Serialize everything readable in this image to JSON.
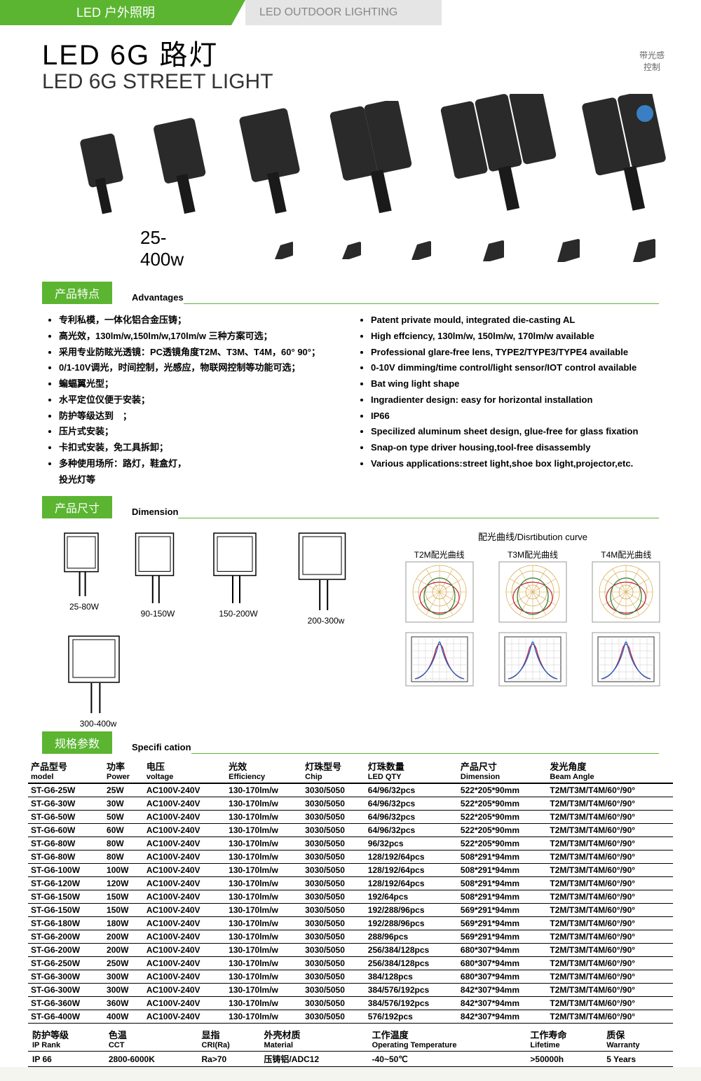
{
  "header": {
    "cn": "LED 户外照明",
    "en": "LED OUTDOOR LIGHTING"
  },
  "title": {
    "cn": "LED 6G 路灯",
    "en": "LED 6G STREET LIGHT"
  },
  "badge": "带光感\n控制",
  "wattage": "25-400w",
  "sections": {
    "advantages": {
      "tab": "产品特点",
      "sub": "Advantages"
    },
    "dimension": {
      "tab": "产品尺寸",
      "sub": "Dimension"
    },
    "specification": {
      "tab": "规格参数",
      "sub": "Specifi cation"
    }
  },
  "advantages_cn": [
    "专利私模，一体化铝合金压铸；",
    "高光效，130lm/w,150lm/w,170lm/w 三种方案可选；",
    "采用专业防眩光透镜：PC透镜角度T2M、T3M、T4M，60° 90°；",
    "0/1-10V调光，时间控制，光感应，物联网控制等功能可选；",
    "蝙蝠翼光型；",
    "水平定位仪便于安装；",
    "防护等级达到　；",
    "压片式安装；",
    "卡扣式安装，免工具拆卸；",
    "多种使用场所：路灯，鞋盒灯，\n投光灯等"
  ],
  "advantages_en": [
    "Patent private mould, integrated die-casting AL",
    "High effciency, 130lm/w, 150lm/w, 170lm/w available",
    "Professional glare-free lens, TYPE2/TYPE3/TYPE4 available",
    "0-10V dimming/time control/light sensor/IOT control available",
    "Bat wing light shape",
    "Ingradienter design: easy for horizontal installation",
    "IP66",
    "Specilized aluminum sheet design, glue-free for glass fixation",
    "Snap-on type driver housing,tool-free disassembly",
    "Various applications:street light,shoe box light,projector,etc."
  ],
  "dim_labels": [
    "25-80W",
    "90-150W",
    "150-200W",
    "200-300w",
    "300-400w"
  ],
  "curves_title": "配光曲线/Disrtibution curve",
  "curve_labels": [
    "T2M配光曲线",
    "T3M配光曲线",
    "T4M配光曲线"
  ],
  "spec_headers": [
    {
      "cn": "产品型号",
      "en": "model"
    },
    {
      "cn": "功率",
      "en": "Power"
    },
    {
      "cn": "电压",
      "en": "voltage"
    },
    {
      "cn": "光效",
      "en": "Efficiency"
    },
    {
      "cn": "灯珠型号",
      "en": "Chip"
    },
    {
      "cn": "灯珠数量",
      "en": "LED QTY"
    },
    {
      "cn": "产品尺寸",
      "en": "Dimension"
    },
    {
      "cn": "发光角度",
      "en": "Beam Angle"
    }
  ],
  "spec_rows": [
    [
      "ST-G6-25W",
      "25W",
      "AC100V-240V",
      "130-170lm/w",
      "3030/5050",
      "64/96/32pcs",
      "522*205*90mm",
      "T2M/T3M/T4M/60°/90°"
    ],
    [
      "ST-G6-30W",
      "30W",
      "AC100V-240V",
      "130-170lm/w",
      "3030/5050",
      "64/96/32pcs",
      "522*205*90mm",
      "T2M/T3M/T4M/60°/90°"
    ],
    [
      "ST-G6-50W",
      "50W",
      "AC100V-240V",
      "130-170lm/w",
      "3030/5050",
      "64/96/32pcs",
      "522*205*90mm",
      "T2M/T3M/T4M/60°/90°"
    ],
    [
      "ST-G6-60W",
      "60W",
      "AC100V-240V",
      "130-170lm/w",
      "3030/5050",
      "64/96/32pcs",
      "522*205*90mm",
      "T2M/T3M/T4M/60°/90°"
    ],
    [
      "ST-G6-80W",
      "80W",
      "AC100V-240V",
      "130-170lm/w",
      "3030/5050",
      "96/32pcs",
      "522*205*90mm",
      "T2M/T3M/T4M/60°/90°"
    ],
    [
      "ST-G6-80W",
      "80W",
      "AC100V-240V",
      "130-170lm/w",
      "3030/5050",
      "128/192/64pcs",
      "508*291*94mm",
      "T2M/T3M/T4M/60°/90°"
    ],
    [
      "ST-G6-100W",
      "100W",
      "AC100V-240V",
      "130-170lm/w",
      "3030/5050",
      "128/192/64pcs",
      "508*291*94mm",
      "T2M/T3M/T4M/60°/90°"
    ],
    [
      "ST-G6-120W",
      "120W",
      "AC100V-240V",
      "130-170lm/w",
      "3030/5050",
      "128/192/64pcs",
      "508*291*94mm",
      "T2M/T3M/T4M/60°/90°"
    ],
    [
      "ST-G6-150W",
      "150W",
      "AC100V-240V",
      "130-170lm/w",
      "3030/5050",
      "192/64pcs",
      "508*291*94mm",
      "T2M/T3M/T4M/60°/90°"
    ],
    [
      "ST-G6-150W",
      "150W",
      "AC100V-240V",
      "130-170lm/w",
      "3030/5050",
      "192/288/96pcs",
      "569*291*94mm",
      "T2M/T3M/T4M/60°/90°"
    ],
    [
      "ST-G6-180W",
      "180W",
      "AC100V-240V",
      "130-170lm/w",
      "3030/5050",
      "192/288/96pcs",
      "569*291*94mm",
      "T2M/T3M/T4M/60°/90°"
    ],
    [
      "ST-G6-200W",
      "200W",
      "AC100V-240V",
      "130-170lm/w",
      "3030/5050",
      "288/96pcs",
      "569*291*94mm",
      "T2M/T3M/T4M/60°/90°"
    ],
    [
      "ST-G6-200W",
      "200W",
      "AC100V-240V",
      "130-170lm/w",
      "3030/5050",
      "256/384/128pcs",
      "680*307*94mm",
      "T2M/T3M/T4M/60°/90°"
    ],
    [
      "ST-G6-250W",
      "250W",
      "AC100V-240V",
      "130-170lm/w",
      "3030/5050",
      "256/384/128pcs",
      "680*307*94mm",
      "T2M/T3M/T4M/60°/90°"
    ],
    [
      "ST-G6-300W",
      "300W",
      "AC100V-240V",
      "130-170lm/w",
      "3030/5050",
      "384/128pcs",
      "680*307*94mm",
      "T2M/T3M/T4M/60°/90°"
    ],
    [
      "ST-G6-300W",
      "300W",
      "AC100V-240V",
      "130-170lm/w",
      "3030/5050",
      "384/576/192pcs",
      "842*307*94mm",
      "T2M/T3M/T4M/60°/90°"
    ],
    [
      "ST-G6-360W",
      "360W",
      "AC100V-240V",
      "130-170lm/w",
      "3030/5050",
      "384/576/192pcs",
      "842*307*94mm",
      "T2M/T3M/T4M/60°/90°"
    ],
    [
      "ST-G6-400W",
      "400W",
      "AC100V-240V",
      "130-170lm/w",
      "3030/5050",
      "576/192pcs",
      "842*307*94mm",
      "T2M/T3M/T4M/60°/90°"
    ]
  ],
  "footer_headers": [
    {
      "cn": "防护等级",
      "en": "IP Rank"
    },
    {
      "cn": "色温",
      "en": "CCT"
    },
    {
      "cn": "显指",
      "en": "CRI(Ra)"
    },
    {
      "cn": "外壳材质",
      "en": "Material"
    },
    {
      "cn": "工作温度",
      "en": "Operating Temperature"
    },
    {
      "cn": "工作寿命",
      "en": "Lifetime"
    },
    {
      "cn": "质保",
      "en": "Warranty"
    }
  ],
  "footer_row": [
    "IP 66",
    "2800-6000K",
    "Ra>70",
    "压铸铝/ADC12",
    "-40~50℃",
    ">50000h",
    "5 Years"
  ],
  "colors": {
    "green": "#5bb531",
    "gray": "#e5e5e5",
    "black": "#1a1a1a"
  }
}
